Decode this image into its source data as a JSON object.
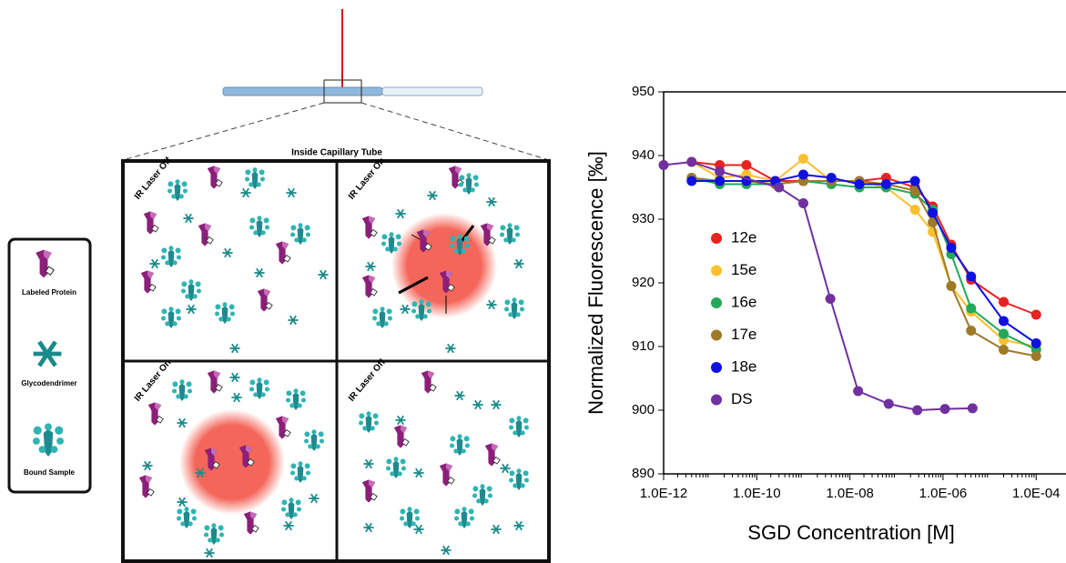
{
  "diagram": {
    "title": "Inside Capillary Tube",
    "panels": [
      "IR Laser Off",
      "IR Laser On",
      "IR Laser On",
      "IR Laser Off"
    ],
    "legend": [
      "Labeled Protein",
      "Glycodendrimer",
      "Bound Sample"
    ]
  },
  "chart_data": {
    "type": "scatter",
    "y_label": "Normalized Fluorescence  [‰]",
    "x_label": "SGD Concentration [M]",
    "xscale": "log",
    "xlim": [
      1e-12,
      0.0005
    ],
    "xticks": [
      {
        "value": 1e-12,
        "label": "1.0E-12"
      },
      {
        "value": 1e-10,
        "label": "1.0E-10"
      },
      {
        "value": 1e-08,
        "label": "1.0E-08"
      },
      {
        "value": 1e-06,
        "label": "1.0E-06"
      },
      {
        "value": 0.0001,
        "label": "1.0E-04"
      }
    ],
    "ylim": [
      890,
      950
    ],
    "yticks": [
      890,
      900,
      910,
      920,
      930,
      940,
      950
    ],
    "series": [
      {
        "name": "12e",
        "color": "#e8221e",
        "x": [
          4e-12,
          1.6e-11,
          6e-11,
          2.5e-10,
          1e-09,
          4e-09,
          1.6e-08,
          6e-08,
          2.5e-07,
          6e-07,
          1.5e-06,
          4e-06,
          2e-05,
          0.0001
        ],
        "values": [
          939,
          938.5,
          938.5,
          936,
          936,
          936,
          936,
          936.5,
          935,
          932,
          926,
          920.5,
          917,
          915
        ]
      },
      {
        "name": "15e",
        "color": "#fbc02d",
        "x": [
          4e-12,
          1.6e-11,
          6e-11,
          2.5e-10,
          1e-09,
          4e-09,
          1.6e-08,
          6e-08,
          2.5e-07,
          6e-07,
          1.5e-06,
          4e-06,
          2e-05,
          0.0001
        ],
        "values": [
          939,
          936.5,
          937,
          936,
          939.5,
          936,
          936,
          935,
          931.5,
          928,
          919.5,
          915.5,
          911,
          910
        ]
      },
      {
        "name": "16e",
        "color": "#22a859",
        "x": [
          4e-12,
          1.6e-11,
          6e-11,
          2.5e-10,
          1e-09,
          4e-09,
          1.6e-08,
          6e-08,
          2.5e-07,
          6e-07,
          1.5e-06,
          4e-06,
          2e-05,
          0.0001
        ],
        "values": [
          936.5,
          935.5,
          935.5,
          935.5,
          936,
          935.5,
          935,
          935,
          934,
          931.5,
          924.5,
          916,
          912,
          909.5
        ]
      },
      {
        "name": "17e",
        "color": "#9e7a28",
        "x": [
          4e-12,
          1.6e-11,
          6e-11,
          2.5e-10,
          1e-09,
          4e-09,
          1.6e-08,
          6e-08,
          2.5e-07,
          6e-07,
          1.5e-06,
          4e-06,
          2e-05,
          0.0001
        ],
        "values": [
          936.5,
          936,
          936,
          935.5,
          936,
          936,
          936,
          935.5,
          934.5,
          929.5,
          919.5,
          912.5,
          909.5,
          908.5
        ]
      },
      {
        "name": "18e",
        "color": "#1010e0",
        "x": [
          4e-12,
          1.6e-11,
          6e-11,
          2.5e-10,
          1e-09,
          4e-09,
          1.6e-08,
          6e-08,
          2.5e-07,
          6e-07,
          1.5e-06,
          4e-06,
          2e-05,
          0.0001
        ],
        "values": [
          936,
          936,
          936,
          936,
          937,
          936.5,
          935.5,
          935.5,
          936,
          931,
          925.5,
          921,
          914,
          910.5
        ]
      },
      {
        "name": "DS",
        "color": "#7030a0",
        "x": [
          1e-12,
          4e-12,
          1.6e-11,
          3e-10,
          1e-09,
          3.8e-09,
          1.5e-08,
          6.8e-08,
          2.8e-07,
          1.1e-06,
          4.3e-06
        ],
        "values": [
          938.5,
          939,
          937.5,
          935,
          932.5,
          917.5,
          903,
          901,
          900,
          900.2,
          900.3
        ]
      }
    ]
  }
}
